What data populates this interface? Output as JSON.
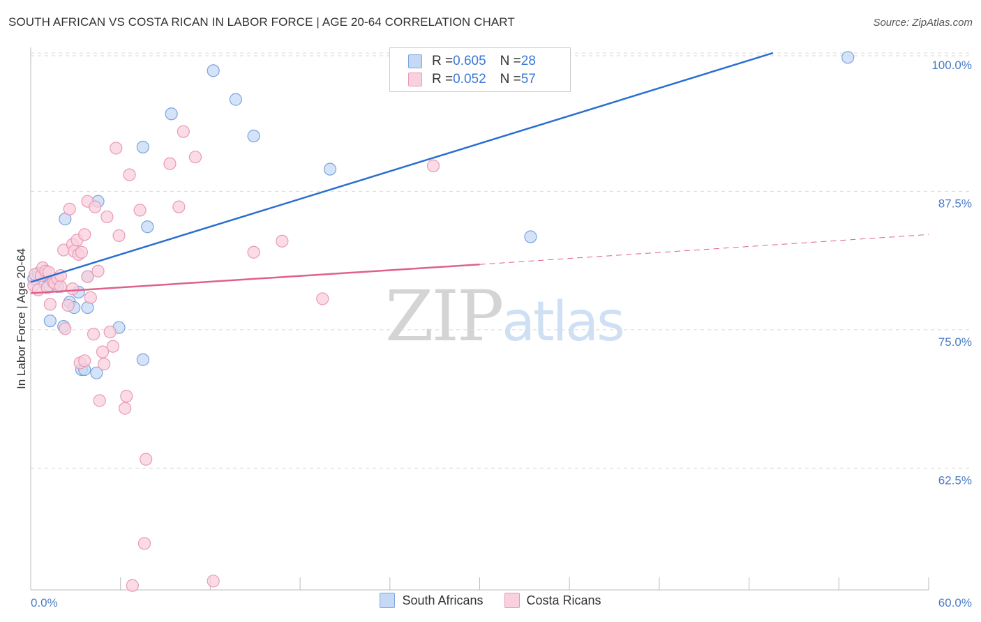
{
  "header": {
    "title": "SOUTH AFRICAN VS COSTA RICAN IN LABOR FORCE | AGE 20-64 CORRELATION CHART",
    "source": "Source: ZipAtlas.com"
  },
  "watermark": {
    "zip": "ZIP",
    "atlas": "atlas"
  },
  "legend": {
    "rows": [
      {
        "r_label": "R = ",
        "r_value": "0.605",
        "n_label": "N = ",
        "n_value": "28"
      },
      {
        "r_label": "R = ",
        "r_value": "0.052",
        "n_label": "N = ",
        "n_value": "57"
      }
    ]
  },
  "bottom_legend": {
    "blue": "South Africans",
    "pink": "Costa Ricans"
  },
  "colors": {
    "blue_fill": "#c5d9f5",
    "blue_stroke": "#7ba3e0",
    "blue_line": "#2a6fd0",
    "pink_fill": "#f9d0dd",
    "pink_stroke": "#e89ab2",
    "pink_line": "#e0608a",
    "grid": "#d9d9d9",
    "tick_text": "#4a7cc7"
  },
  "chart_data": {
    "type": "scatter",
    "title": "SOUTH AFRICAN VS COSTA RICAN IN LABOR FORCE | AGE 20-64 CORRELATION CHART",
    "xlabel": "",
    "ylabel": "In Labor Force | Age 20-64",
    "xlim": [
      0,
      60
    ],
    "ylim": [
      51.5,
      100.5
    ],
    "x_tick_labels": [
      "0.0%",
      "60.0%"
    ],
    "y_ticks": [
      62.5,
      75.0,
      87.5,
      100.0
    ],
    "y_tick_labels": [
      "62.5%",
      "75.0%",
      "87.5%",
      "100.0%"
    ],
    "series": [
      {
        "name": "South Africans",
        "r": 0.605,
        "n": 28,
        "trend": {
          "x": [
            0,
            49.6
          ],
          "y": [
            79.3,
            100.0
          ]
        },
        "points": [
          [
            0.2,
            79.6
          ],
          [
            0.5,
            80.1
          ],
          [
            0.8,
            79.3
          ],
          [
            1.2,
            79.0
          ],
          [
            1.3,
            75.8
          ],
          [
            1.8,
            78.9
          ],
          [
            2.2,
            75.3
          ],
          [
            2.3,
            85.0
          ],
          [
            2.6,
            77.5
          ],
          [
            2.9,
            77.0
          ],
          [
            3.2,
            78.4
          ],
          [
            3.4,
            71.4
          ],
          [
            3.6,
            71.4
          ],
          [
            3.8,
            77.0
          ],
          [
            3.8,
            79.8
          ],
          [
            4.5,
            86.6
          ],
          [
            4.4,
            71.1
          ],
          [
            5.9,
            75.2
          ],
          [
            7.5,
            72.3
          ],
          [
            7.5,
            91.5
          ],
          [
            7.8,
            84.3
          ],
          [
            9.4,
            94.5
          ],
          [
            12.2,
            98.4
          ],
          [
            13.7,
            95.8
          ],
          [
            14.9,
            92.5
          ],
          [
            20.0,
            89.5
          ],
          [
            33.4,
            83.4
          ],
          [
            54.6,
            99.6
          ]
        ]
      },
      {
        "name": "Costa Ricans",
        "r": 0.052,
        "n": 57,
        "trend": {
          "x": [
            0,
            30.0
          ],
          "y": [
            78.3,
            80.9
          ]
        },
        "trend_ext": {
          "x": [
            30.0,
            60.0
          ],
          "y": [
            80.9,
            83.6
          ]
        },
        "points": [
          [
            0.2,
            79.0
          ],
          [
            0.3,
            80.0
          ],
          [
            0.5,
            78.6
          ],
          [
            0.7,
            79.9
          ],
          [
            0.8,
            80.6
          ],
          [
            1.0,
            80.3
          ],
          [
            1.1,
            78.8
          ],
          [
            1.2,
            80.2
          ],
          [
            1.3,
            77.3
          ],
          [
            1.5,
            79.3
          ],
          [
            1.6,
            79.2
          ],
          [
            1.8,
            79.6
          ],
          [
            2.0,
            78.9
          ],
          [
            2.0,
            79.9
          ],
          [
            2.2,
            82.2
          ],
          [
            2.3,
            75.1
          ],
          [
            2.5,
            77.2
          ],
          [
            2.6,
            85.9
          ],
          [
            2.8,
            82.7
          ],
          [
            2.8,
            78.7
          ],
          [
            2.9,
            82.1
          ],
          [
            3.1,
            83.1
          ],
          [
            3.2,
            81.8
          ],
          [
            3.3,
            72.0
          ],
          [
            3.4,
            82.0
          ],
          [
            3.6,
            83.6
          ],
          [
            3.6,
            72.2
          ],
          [
            3.8,
            79.8
          ],
          [
            3.8,
            86.6
          ],
          [
            4.0,
            77.9
          ],
          [
            4.2,
            74.6
          ],
          [
            4.3,
            86.1
          ],
          [
            4.5,
            80.3
          ],
          [
            4.6,
            68.6
          ],
          [
            4.8,
            73.0
          ],
          [
            4.9,
            71.9
          ],
          [
            5.1,
            85.2
          ],
          [
            5.3,
            74.8
          ],
          [
            5.5,
            73.5
          ],
          [
            5.7,
            91.4
          ],
          [
            5.9,
            83.5
          ],
          [
            6.3,
            67.9
          ],
          [
            6.4,
            69.0
          ],
          [
            6.6,
            89.0
          ],
          [
            6.8,
            51.9
          ],
          [
            7.3,
            85.8
          ],
          [
            7.6,
            55.7
          ],
          [
            7.7,
            63.3
          ],
          [
            9.3,
            90.0
          ],
          [
            9.9,
            86.1
          ],
          [
            10.2,
            92.9
          ],
          [
            11.0,
            90.6
          ],
          [
            12.2,
            52.3
          ],
          [
            14.9,
            82.0
          ],
          [
            16.8,
            83.0
          ],
          [
            19.5,
            77.8
          ],
          [
            26.9,
            89.8
          ]
        ]
      }
    ]
  }
}
